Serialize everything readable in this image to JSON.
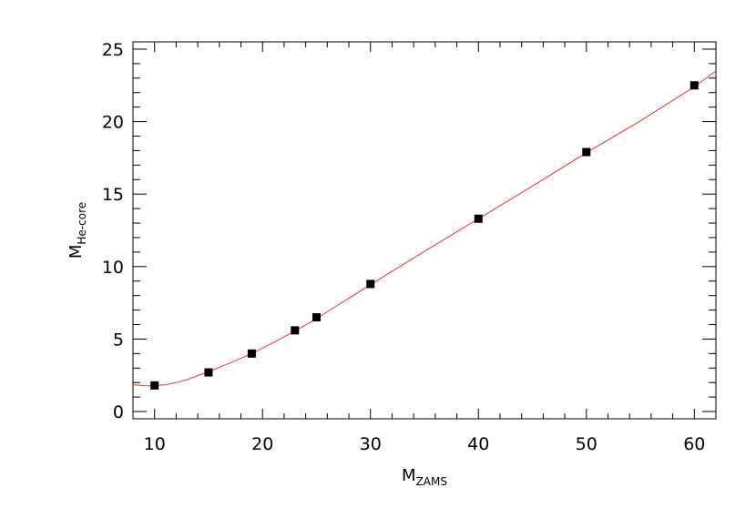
{
  "chart_data": {
    "type": "scatter",
    "xlabel": {
      "main": "M",
      "sub": "ZAMS"
    },
    "ylabel": {
      "main": "M",
      "sub": "He-core"
    },
    "xlim": [
      8,
      62
    ],
    "ylim": [
      -0.5,
      25.5
    ],
    "x_ticks": [
      10,
      20,
      30,
      40,
      50,
      60
    ],
    "x_tick_labels": [
      "10",
      "20",
      "30",
      "40",
      "50",
      "60"
    ],
    "y_ticks": [
      0,
      5,
      10,
      15,
      20,
      25
    ],
    "y_tick_labels": [
      "0",
      "5",
      "10",
      "15",
      "20",
      "25"
    ],
    "grid": false,
    "points": [
      {
        "x": 10,
        "y": 1.8
      },
      {
        "x": 15,
        "y": 2.7
      },
      {
        "x": 19,
        "y": 4.0
      },
      {
        "x": 23,
        "y": 5.6
      },
      {
        "x": 25,
        "y": 6.5
      },
      {
        "x": 30,
        "y": 8.8
      },
      {
        "x": 40,
        "y": 13.3
      },
      {
        "x": 50,
        "y": 17.9
      },
      {
        "x": 60,
        "y": 22.5
      }
    ],
    "fit_curve": [
      {
        "x": 8,
        "y": 1.85
      },
      {
        "x": 9,
        "y": 1.78
      },
      {
        "x": 10,
        "y": 1.78
      },
      {
        "x": 11,
        "y": 1.85
      },
      {
        "x": 12,
        "y": 2.0
      },
      {
        "x": 13,
        "y": 2.2
      },
      {
        "x": 15,
        "y": 2.75
      },
      {
        "x": 17,
        "y": 3.35
      },
      {
        "x": 19,
        "y": 4.0
      },
      {
        "x": 21,
        "y": 4.75
      },
      {
        "x": 23,
        "y": 5.55
      },
      {
        "x": 25,
        "y": 6.4
      },
      {
        "x": 27,
        "y": 7.35
      },
      {
        "x": 30,
        "y": 8.75
      },
      {
        "x": 35,
        "y": 11.05
      },
      {
        "x": 40,
        "y": 13.3
      },
      {
        "x": 45,
        "y": 15.55
      },
      {
        "x": 50,
        "y": 17.85
      },
      {
        "x": 55,
        "y": 20.05
      },
      {
        "x": 60,
        "y": 22.4
      },
      {
        "x": 62,
        "y": 23.5
      }
    ],
    "colors": {
      "curve": "#ff2b2b",
      "marker": "#000000",
      "axis": "#000000"
    },
    "marker": "filled-square"
  }
}
